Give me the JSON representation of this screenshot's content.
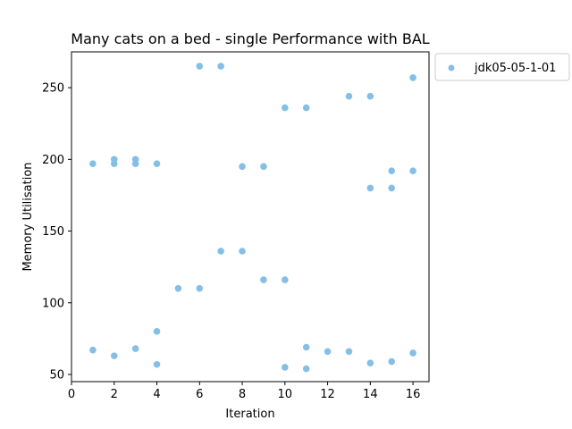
{
  "chart_data": {
    "type": "scatter",
    "title": "Many cats on a bed - single Performance with BAL",
    "xlabel": "Iteration",
    "ylabel": "Memory Utilisation",
    "xlim": [
      0,
      16.75
    ],
    "ylim": [
      45,
      275
    ],
    "xticks": [
      0,
      2,
      4,
      6,
      8,
      10,
      12,
      14,
      16
    ],
    "yticks": [
      50,
      100,
      150,
      200,
      250
    ],
    "grid": false,
    "legend_placement": "outside-top-right",
    "series": [
      {
        "name": "jdk05-05-1-01",
        "color": "#85bfe6",
        "points": [
          [
            1,
            197
          ],
          [
            1,
            67
          ],
          [
            2,
            200
          ],
          [
            2,
            197
          ],
          [
            2,
            63
          ],
          [
            3,
            200
          ],
          [
            3,
            197
          ],
          [
            3,
            68
          ],
          [
            4,
            197
          ],
          [
            4,
            80
          ],
          [
            4,
            57
          ],
          [
            5,
            110
          ],
          [
            6,
            265
          ],
          [
            6,
            110
          ],
          [
            7,
            265
          ],
          [
            7,
            136
          ],
          [
            8,
            195
          ],
          [
            8,
            136
          ],
          [
            9,
            195
          ],
          [
            9,
            116
          ],
          [
            10,
            236
          ],
          [
            10,
            116
          ],
          [
            10,
            55
          ],
          [
            11,
            236
          ],
          [
            11,
            69
          ],
          [
            11,
            54
          ],
          [
            12,
            66
          ],
          [
            13,
            244
          ],
          [
            13,
            66
          ],
          [
            14,
            244
          ],
          [
            14,
            180
          ],
          [
            14,
            58
          ],
          [
            15,
            192
          ],
          [
            15,
            180
          ],
          [
            15,
            59
          ],
          [
            16,
            257
          ],
          [
            16,
            192
          ],
          [
            16,
            65
          ]
        ]
      }
    ]
  }
}
